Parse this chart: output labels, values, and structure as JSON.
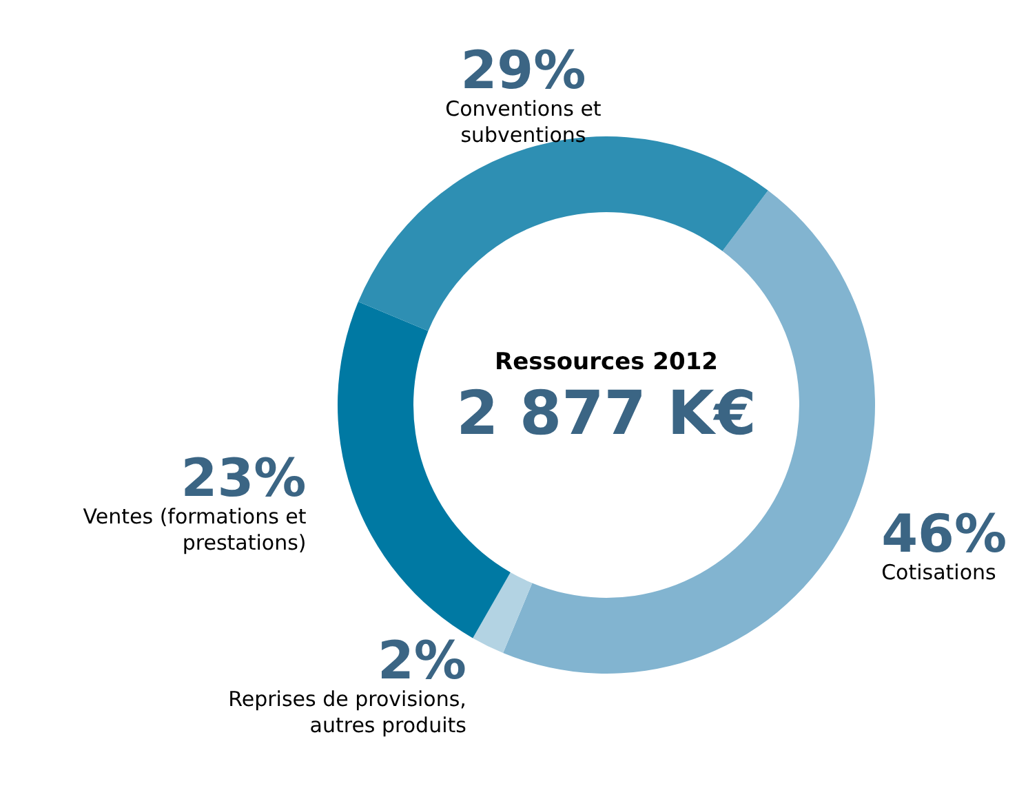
{
  "chart_data": {
    "type": "donut",
    "title": "Ressources 2012",
    "subtitle": "2 877 K€",
    "categories": [
      "Cotisations",
      "Reprises de provisions, autres produits",
      "Ventes (formations et prestations)",
      "Conventions et subventions"
    ],
    "values": [
      46,
      2,
      23,
      29
    ],
    "colors": [
      "#82b4d0",
      "#b3d3e3",
      "#0079a3",
      "#2e8fb3"
    ],
    "value_labels": [
      "46%",
      "2%",
      "23%",
      "29%"
    ]
  }
}
